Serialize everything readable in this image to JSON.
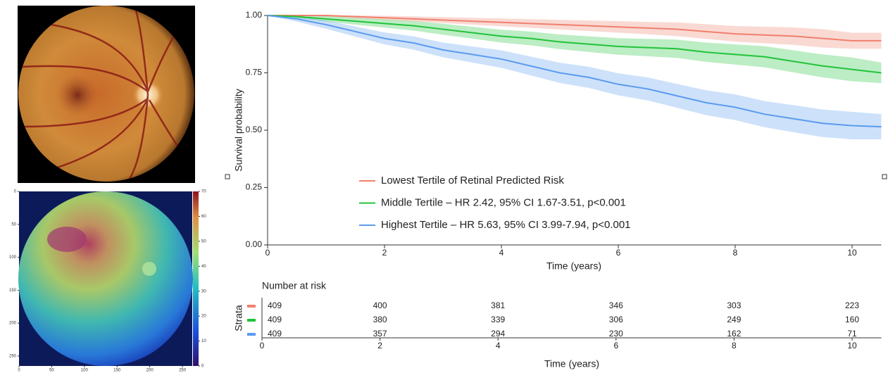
{
  "chart_data": [
    {
      "type": "km",
      "xlabel": "Time (years)",
      "ylabel": "Survival probability",
      "xlim": [
        0,
        10.5
      ],
      "ylim": [
        0,
        1
      ],
      "xticks": [
        0,
        2,
        4,
        6,
        8,
        10
      ],
      "yticks": [
        {
          "value": 0,
          "label": "0.00"
        },
        {
          "value": 0.25,
          "label": "0.25"
        },
        {
          "value": 0.5,
          "label": "0.50"
        },
        {
          "value": 0.75,
          "label": "0.75"
        },
        {
          "value": 1,
          "label": "1.00"
        }
      ],
      "x": [
        0,
        0.5,
        1,
        1.5,
        2,
        2.5,
        3,
        3.5,
        4,
        4.5,
        5,
        5.5,
        6,
        6.5,
        7,
        7.5,
        8,
        8.5,
        9,
        9.5,
        10,
        10.5
      ],
      "series": [
        {
          "name": "Lowest Tertile of Retinal Predicted Risk",
          "color": "#f0806e",
          "values": [
            1,
            1,
            1,
            0.995,
            0.99,
            0.985,
            0.98,
            0.975,
            0.97,
            0.965,
            0.96,
            0.955,
            0.95,
            0.945,
            0.94,
            0.93,
            0.92,
            0.915,
            0.91,
            0.9,
            0.89,
            0.89
          ],
          "lower": [
            1,
            0.998,
            0.995,
            0.988,
            0.981,
            0.974,
            0.967,
            0.96,
            0.953,
            0.946,
            0.939,
            0.932,
            0.925,
            0.918,
            0.91,
            0.898,
            0.886,
            0.879,
            0.872,
            0.86,
            0.855,
            0.855
          ],
          "upper": [
            1,
            1,
            1,
            1,
            0.999,
            0.996,
            0.993,
            0.99,
            0.987,
            0.984,
            0.981,
            0.978,
            0.975,
            0.972,
            0.97,
            0.962,
            0.954,
            0.951,
            0.948,
            0.94,
            0.925,
            0.925
          ]
        },
        {
          "name": "Middle Tertile – HR 2.42, 95% CI 1.67-3.51, p<0.001",
          "color": "#22c33a",
          "values": [
            1,
            0.995,
            0.985,
            0.975,
            0.965,
            0.955,
            0.94,
            0.925,
            0.91,
            0.9,
            0.885,
            0.875,
            0.865,
            0.86,
            0.855,
            0.84,
            0.83,
            0.82,
            0.8,
            0.78,
            0.765,
            0.75
          ],
          "lower": [
            1,
            0.988,
            0.973,
            0.96,
            0.947,
            0.934,
            0.916,
            0.899,
            0.882,
            0.87,
            0.853,
            0.841,
            0.829,
            0.822,
            0.815,
            0.798,
            0.786,
            0.774,
            0.752,
            0.73,
            0.713,
            0.705
          ],
          "upper": [
            1,
            1,
            0.997,
            0.99,
            0.983,
            0.976,
            0.964,
            0.951,
            0.938,
            0.93,
            0.917,
            0.909,
            0.901,
            0.898,
            0.895,
            0.882,
            0.874,
            0.866,
            0.848,
            0.83,
            0.817,
            0.795
          ]
        },
        {
          "name": "Highest Tertile – HR 5.63, 95% CI 3.99-7.94, p<0.001",
          "color": "#5b9bef",
          "values": [
            1,
            0.985,
            0.96,
            0.93,
            0.9,
            0.88,
            0.85,
            0.83,
            0.81,
            0.78,
            0.75,
            0.73,
            0.7,
            0.68,
            0.65,
            0.62,
            0.6,
            0.57,
            0.55,
            0.53,
            0.52,
            0.515
          ],
          "lower": [
            1,
            0.973,
            0.942,
            0.908,
            0.874,
            0.851,
            0.818,
            0.795,
            0.772,
            0.739,
            0.706,
            0.684,
            0.652,
            0.63,
            0.598,
            0.566,
            0.544,
            0.513,
            0.491,
            0.47,
            0.46,
            0.46
          ],
          "upper": [
            1,
            0.997,
            0.978,
            0.952,
            0.926,
            0.909,
            0.882,
            0.865,
            0.848,
            0.821,
            0.794,
            0.776,
            0.748,
            0.73,
            0.702,
            0.674,
            0.656,
            0.627,
            0.609,
            0.59,
            0.58,
            0.57
          ]
        }
      ],
      "risk_table": {
        "title": "Number at risk",
        "ylabel": "Strata",
        "xlabel": "Time (years)",
        "times": [
          0,
          2,
          4,
          6,
          8,
          10
        ],
        "counts": [
          [
            409,
            400,
            381,
            346,
            303,
            223
          ],
          [
            409,
            380,
            339,
            306,
            249,
            160
          ],
          [
            409,
            357,
            294,
            230,
            162,
            71
          ]
        ]
      }
    },
    {
      "type": "heatmap",
      "xlim": [
        0,
        265
      ],
      "ylim": [
        0,
        265
      ],
      "xticks": [
        0,
        50,
        100,
        150,
        200,
        250
      ],
      "yticks": [
        0,
        50,
        100,
        150,
        200,
        250
      ],
      "colorbar_lim": [
        0,
        70
      ],
      "colorbar_ticks": [
        0,
        10,
        20,
        30,
        40,
        50,
        60,
        70
      ]
    }
  ]
}
